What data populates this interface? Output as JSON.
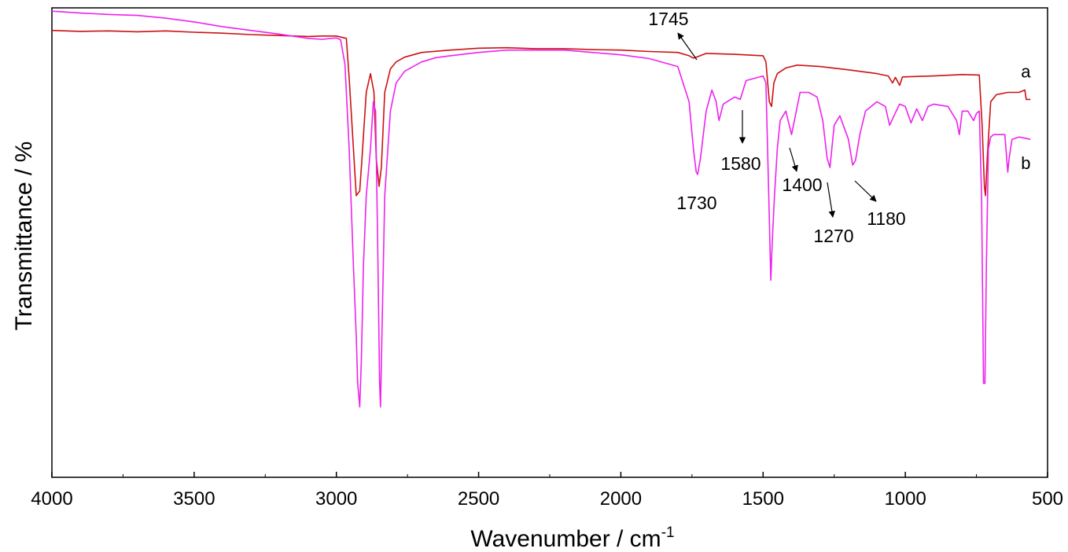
{
  "chart_data": {
    "type": "line",
    "xlabel": "Wavenumber / cm",
    "xlabel_sup": "-1",
    "ylabel": "Transmittance / %",
    "xlim": [
      4000,
      500
    ],
    "ylim": [
      0,
      100
    ],
    "x_reversed": true,
    "y_ticks_shown": false,
    "grid": false,
    "x_ticks": [
      4000,
      3500,
      3000,
      2500,
      2000,
      1500,
      1000,
      500
    ],
    "x_tick_labels": [
      "4000",
      "3500",
      "3000",
      "2500",
      "2000",
      "1500",
      "1000",
      "500"
    ],
    "series": [
      {
        "name": "a",
        "color": "#cc1111",
        "points": [
          [
            4000,
            95.2
          ],
          [
            3900,
            95.0
          ],
          [
            3800,
            95.1
          ],
          [
            3700,
            94.9
          ],
          [
            3600,
            95.1
          ],
          [
            3500,
            94.8
          ],
          [
            3400,
            94.6
          ],
          [
            3300,
            94.3
          ],
          [
            3200,
            94.1
          ],
          [
            3100,
            93.9
          ],
          [
            3050,
            94.0
          ],
          [
            3000,
            94.0
          ],
          [
            2965,
            93.5
          ],
          [
            2955,
            85.0
          ],
          [
            2940,
            70.0
          ],
          [
            2930,
            60.0
          ],
          [
            2918,
            61.0
          ],
          [
            2910,
            68.0
          ],
          [
            2895,
            82.0
          ],
          [
            2880,
            86.0
          ],
          [
            2868,
            82.0
          ],
          [
            2860,
            68.0
          ],
          [
            2850,
            62.0
          ],
          [
            2842,
            66.0
          ],
          [
            2830,
            82.0
          ],
          [
            2810,
            87.0
          ],
          [
            2790,
            88.5
          ],
          [
            2760,
            89.5
          ],
          [
            2700,
            90.5
          ],
          [
            2600,
            91.0
          ],
          [
            2500,
            91.4
          ],
          [
            2400,
            91.5
          ],
          [
            2300,
            91.3
          ],
          [
            2200,
            91.3
          ],
          [
            2100,
            91.1
          ],
          [
            2000,
            91.0
          ],
          [
            1900,
            90.7
          ],
          [
            1800,
            90.5
          ],
          [
            1760,
            89.8
          ],
          [
            1745,
            89.3
          ],
          [
            1730,
            89.6
          ],
          [
            1700,
            90.3
          ],
          [
            1600,
            90.1
          ],
          [
            1500,
            89.8
          ],
          [
            1490,
            88.5
          ],
          [
            1478,
            80.0
          ],
          [
            1470,
            79.0
          ],
          [
            1462,
            84.0
          ],
          [
            1450,
            86.0
          ],
          [
            1420,
            87.2
          ],
          [
            1380,
            87.8
          ],
          [
            1300,
            87.5
          ],
          [
            1200,
            86.8
          ],
          [
            1100,
            86.0
          ],
          [
            1060,
            85.5
          ],
          [
            1045,
            84.0
          ],
          [
            1035,
            85.2
          ],
          [
            1020,
            83.5
          ],
          [
            1010,
            85.3
          ],
          [
            900,
            85.5
          ],
          [
            800,
            85.8
          ],
          [
            740,
            85.7
          ],
          [
            730,
            75.0
          ],
          [
            722,
            62.0
          ],
          [
            718,
            60.0
          ],
          [
            712,
            68.0
          ],
          [
            700,
            80.0
          ],
          [
            680,
            81.5
          ],
          [
            640,
            82.0
          ],
          [
            600,
            82.0
          ],
          [
            580,
            82.5
          ],
          [
            575,
            80.5
          ],
          [
            560,
            80.5
          ]
        ]
      },
      {
        "name": "b",
        "color": "#ee22ee",
        "points": [
          [
            4000,
            99.3
          ],
          [
            3900,
            98.9
          ],
          [
            3800,
            98.6
          ],
          [
            3700,
            98.4
          ],
          [
            3600,
            97.8
          ],
          [
            3500,
            97.0
          ],
          [
            3400,
            96.0
          ],
          [
            3300,
            95.2
          ],
          [
            3200,
            94.4
          ],
          [
            3100,
            93.5
          ],
          [
            3050,
            93.3
          ],
          [
            3000,
            93.6
          ],
          [
            2985,
            93.2
          ],
          [
            2970,
            88.0
          ],
          [
            2955,
            70.0
          ],
          [
            2940,
            45.0
          ],
          [
            2930,
            30.0
          ],
          [
            2925,
            20.0
          ],
          [
            2918,
            15.0
          ],
          [
            2912,
            25.0
          ],
          [
            2905,
            45.0
          ],
          [
            2895,
            60.0
          ],
          [
            2880,
            70.0
          ],
          [
            2870,
            80.0
          ],
          [
            2862,
            78.0
          ],
          [
            2855,
            50.0
          ],
          [
            2848,
            20.0
          ],
          [
            2845,
            15.0
          ],
          [
            2840,
            30.0
          ],
          [
            2830,
            60.0
          ],
          [
            2810,
            78.0
          ],
          [
            2790,
            84.0
          ],
          [
            2760,
            86.5
          ],
          [
            2700,
            88.5
          ],
          [
            2650,
            89.4
          ],
          [
            2600,
            89.8
          ],
          [
            2500,
            90.5
          ],
          [
            2400,
            91.0
          ],
          [
            2300,
            91.0
          ],
          [
            2200,
            91.0
          ],
          [
            2100,
            90.5
          ],
          [
            2000,
            90.0
          ],
          [
            1900,
            89.2
          ],
          [
            1800,
            87.5
          ],
          [
            1760,
            80.0
          ],
          [
            1745,
            70.0
          ],
          [
            1735,
            65.0
          ],
          [
            1730,
            64.5
          ],
          [
            1720,
            68.0
          ],
          [
            1700,
            78.0
          ],
          [
            1680,
            82.5
          ],
          [
            1665,
            80.0
          ],
          [
            1655,
            76.0
          ],
          [
            1640,
            79.5
          ],
          [
            1600,
            81.0
          ],
          [
            1580,
            80.5
          ],
          [
            1560,
            84.5
          ],
          [
            1500,
            85.5
          ],
          [
            1490,
            84.0
          ],
          [
            1480,
            60.0
          ],
          [
            1473,
            42.0
          ],
          [
            1468,
            50.0
          ],
          [
            1460,
            60.0
          ],
          [
            1450,
            70.0
          ],
          [
            1440,
            76.0
          ],
          [
            1420,
            78.0
          ],
          [
            1400,
            73.0
          ],
          [
            1390,
            76.0
          ],
          [
            1370,
            82.0
          ],
          [
            1340,
            82.0
          ],
          [
            1310,
            81.0
          ],
          [
            1290,
            76.0
          ],
          [
            1275,
            68.0
          ],
          [
            1265,
            66.0
          ],
          [
            1250,
            75.0
          ],
          [
            1230,
            77.0
          ],
          [
            1200,
            72.0
          ],
          [
            1185,
            66.5
          ],
          [
            1175,
            67.5
          ],
          [
            1160,
            73.0
          ],
          [
            1140,
            78.0
          ],
          [
            1100,
            80.0
          ],
          [
            1070,
            79.0
          ],
          [
            1055,
            75.0
          ],
          [
            1040,
            77.0
          ],
          [
            1020,
            79.5
          ],
          [
            1000,
            79.0
          ],
          [
            980,
            75.5
          ],
          [
            960,
            78.5
          ],
          [
            940,
            76.0
          ],
          [
            920,
            79.0
          ],
          [
            900,
            79.5
          ],
          [
            850,
            79.0
          ],
          [
            820,
            76.0
          ],
          [
            810,
            73.0
          ],
          [
            800,
            78.0
          ],
          [
            780,
            78.0
          ],
          [
            760,
            76.0
          ],
          [
            750,
            77.5
          ],
          [
            740,
            78.0
          ],
          [
            732,
            60.0
          ],
          [
            725,
            20.0
          ],
          [
            720,
            20.0
          ],
          [
            715,
            45.0
          ],
          [
            708,
            70.0
          ],
          [
            700,
            72.5
          ],
          [
            690,
            73.0
          ],
          [
            650,
            73.0
          ],
          [
            640,
            65.0
          ],
          [
            635,
            68.0
          ],
          [
            625,
            72.0
          ],
          [
            600,
            72.5
          ],
          [
            560,
            72.0
          ]
        ]
      }
    ],
    "annotations": [
      {
        "text": "1745",
        "x": 1745,
        "y": 89.3
      },
      {
        "text": "1730",
        "x": 1730,
        "y": 64.5
      },
      {
        "text": "1580",
        "x": 1580,
        "y": 80.5
      },
      {
        "text": "1400",
        "x": 1400,
        "y": 73.0
      },
      {
        "text": "1270",
        "x": 1270,
        "y": 66.0
      },
      {
        "text": "1180",
        "x": 1180,
        "y": 66.5
      }
    ]
  }
}
